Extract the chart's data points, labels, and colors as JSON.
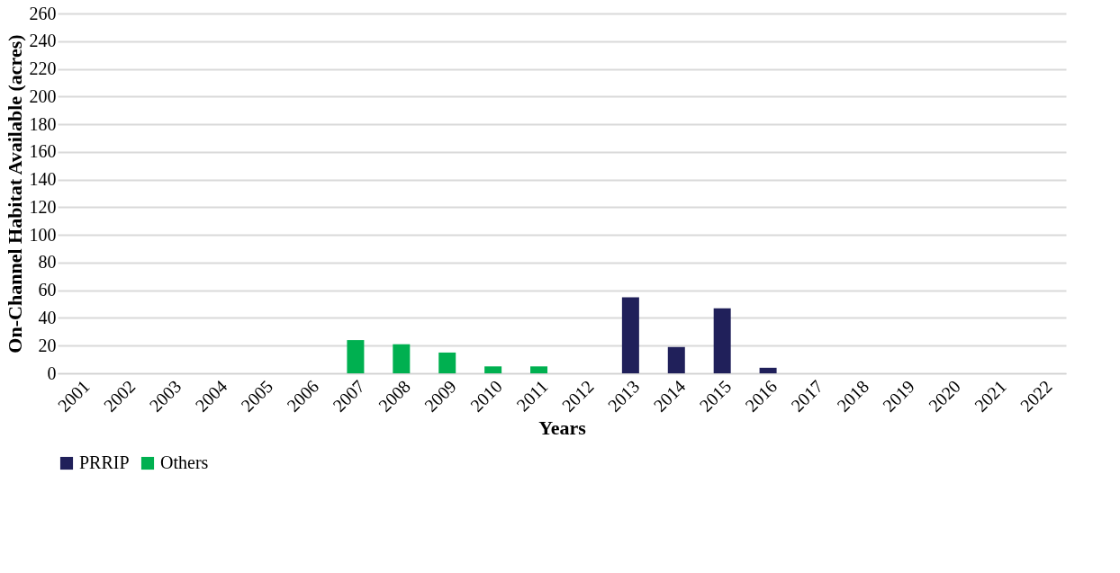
{
  "chart_data": {
    "type": "bar",
    "categories": [
      "2001",
      "2002",
      "2003",
      "2004",
      "2005",
      "2006",
      "2007",
      "2008",
      "2009",
      "2010",
      "2011",
      "2012",
      "2013",
      "2014",
      "2015",
      "2016",
      "2017",
      "2018",
      "2019",
      "2020",
      "2021",
      "2022"
    ],
    "series": [
      {
        "name": "PRRIP",
        "color": "#20205a",
        "values": [
          null,
          null,
          null,
          null,
          null,
          null,
          null,
          null,
          null,
          null,
          null,
          null,
          55,
          19,
          47,
          4,
          null,
          null,
          null,
          null,
          null,
          null
        ]
      },
      {
        "name": "Others",
        "color": "#00b050",
        "values": [
          null,
          null,
          null,
          null,
          null,
          null,
          24,
          21,
          15,
          5,
          5,
          null,
          null,
          null,
          null,
          null,
          null,
          null,
          null,
          null,
          null,
          null
        ]
      }
    ],
    "xlabel": "Years",
    "ylabel": "On-Channel Habitat Available (acres)",
    "ylim": [
      0,
      260
    ],
    "yticks": [
      0,
      20,
      40,
      60,
      80,
      100,
      120,
      140,
      160,
      180,
      200,
      220,
      240,
      260
    ],
    "grid": "y",
    "legend": "bottom"
  }
}
